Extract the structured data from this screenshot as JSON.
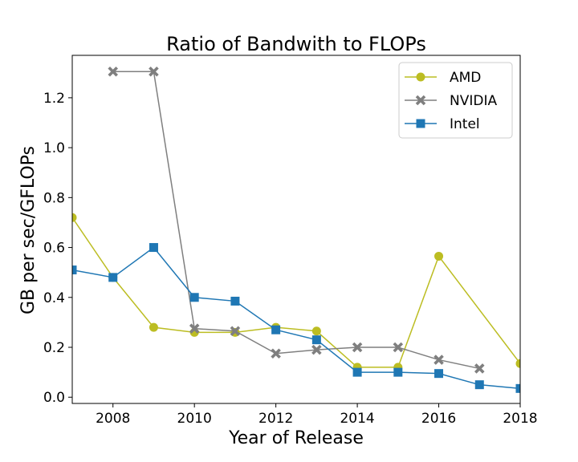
{
  "chart_data": {
    "type": "line",
    "title": "Ratio of Bandwith to FLOPs",
    "xlabel": "Year of Release",
    "ylabel": "GB per sec/GFLOPs",
    "xlim": [
      2007,
      2018
    ],
    "ylim": [
      -0.025,
      1.37
    ],
    "xticks": [
      2008,
      2010,
      2012,
      2014,
      2016,
      2018
    ],
    "yticks": [
      "0.0",
      "0.2",
      "0.4",
      "0.6",
      "0.8",
      "1.0",
      "1.2"
    ],
    "grid": false,
    "legend_position": "top-right",
    "series": [
      {
        "name": "AMD",
        "color": "#bcbd22",
        "marker": "circle",
        "x": [
          2007,
          2008,
          2009,
          2010,
          2011,
          2012,
          2013,
          2014,
          2015,
          2016,
          2018
        ],
        "values": [
          0.72,
          0.48,
          0.28,
          0.26,
          0.26,
          0.28,
          0.265,
          0.12,
          0.12,
          0.565,
          0.135
        ]
      },
      {
        "name": "NVIDIA",
        "color": "#7f7f7f",
        "marker": "x",
        "x": [
          2008,
          2009,
          2010,
          2011,
          2012,
          2013,
          2014,
          2015,
          2016,
          2017
        ],
        "values": [
          1.305,
          1.305,
          0.275,
          0.265,
          0.175,
          0.19,
          0.2,
          0.2,
          0.15,
          0.115
        ]
      },
      {
        "name": "Intel",
        "color": "#1f77b4",
        "marker": "square",
        "x": [
          2007,
          2008,
          2009,
          2010,
          2011,
          2012,
          2013,
          2014,
          2015,
          2016,
          2017,
          2018
        ],
        "values": [
          0.51,
          0.48,
          0.6,
          0.4,
          0.385,
          0.27,
          0.23,
          0.1,
          0.1,
          0.095,
          0.05,
          0.035
        ]
      }
    ]
  }
}
